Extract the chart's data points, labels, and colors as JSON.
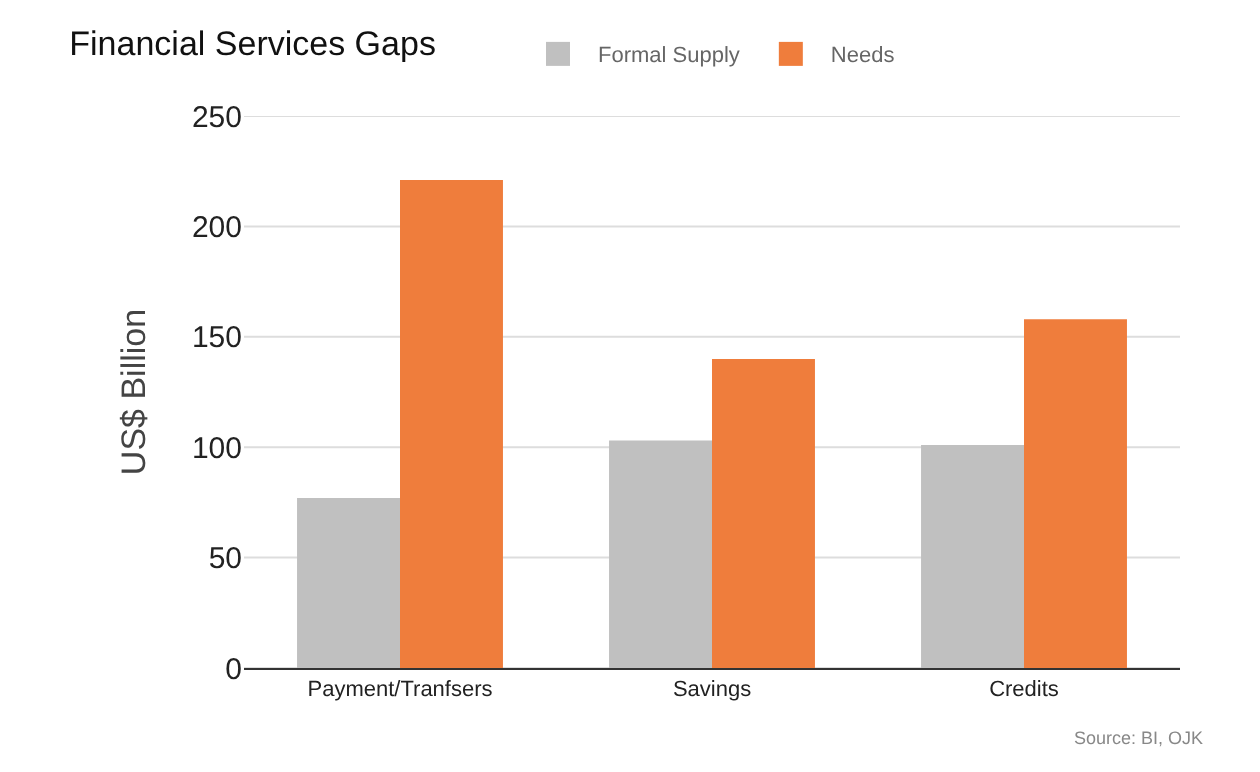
{
  "chart_data": {
    "type": "bar",
    "title": "Financial Services Gaps",
    "ylabel": "US$ Billion",
    "categories": [
      "Payment/Tranfsers",
      "Savings",
      "Credits"
    ],
    "series": [
      {
        "name": "Formal Supply",
        "color": "#c0c0c0",
        "values": [
          77,
          103,
          101
        ]
      },
      {
        "name": "Needs",
        "color": "#ef7d3c",
        "values": [
          221,
          140,
          158
        ]
      }
    ],
    "ylim": [
      0,
      250
    ],
    "yticks": [
      0,
      50,
      100,
      150,
      200,
      250
    ],
    "grid": "y",
    "legend": "top",
    "annotations": [
      "Source: BI, OJK"
    ]
  }
}
